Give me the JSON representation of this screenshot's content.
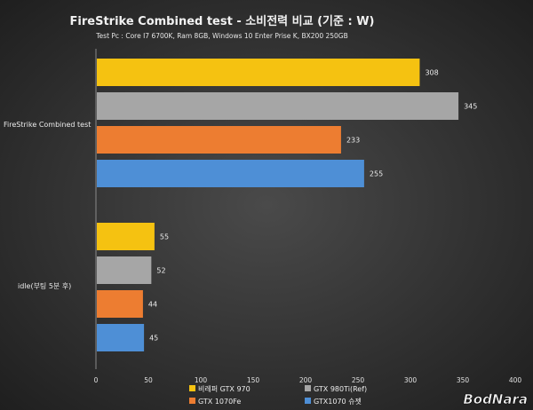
{
  "chart_data": {
    "type": "bar",
    "orientation": "horizontal",
    "title": "FireStrike Combined test - 소비전력 비교 (기준 : W)",
    "subtitle": "Test Pc : Core I7 6700K, Ram 8GB, Windows 10 Enter Prise K, BX200 250GB",
    "categories": [
      "FireStrike Combined test",
      "idle(부팅 5분 후)"
    ],
    "series": [
      {
        "name": "비레퍼 GTX 970",
        "color": "#f5c211",
        "values": [
          308,
          55
        ]
      },
      {
        "name": "GTX 980Ti(Ref)",
        "color": "#a6a6a6",
        "values": [
          345,
          52
        ]
      },
      {
        "name": "GTX 1070Fe",
        "color": "#ed7d31",
        "values": [
          233,
          44
        ]
      },
      {
        "name": "GTX1070 슈젯",
        "color": "#4e8fd6",
        "values": [
          255,
          45
        ]
      }
    ],
    "xlim": [
      0,
      400
    ],
    "xticks": [
      0,
      50,
      100,
      150,
      200,
      250,
      300,
      350,
      400
    ],
    "grid": false,
    "legend_position": "bottom",
    "watermark": "BodNara"
  }
}
